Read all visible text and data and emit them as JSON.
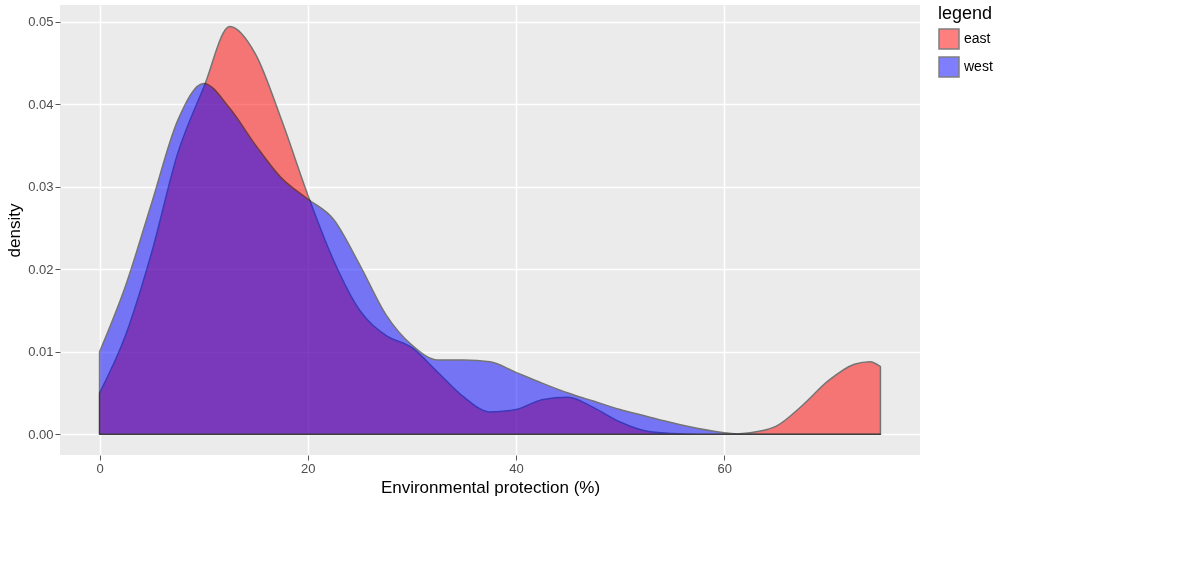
{
  "chart_data": {
    "type": "area",
    "xlabel": "Environmental protection (%)",
    "ylabel": "density",
    "legend_title": "legend",
    "legend": "right",
    "grid": true,
    "xlim": [
      -3.8,
      78.8
    ],
    "xticks": [
      0,
      20,
      40,
      60
    ],
    "ylim": [
      -0.0025,
      0.052
    ],
    "yticks": [
      {
        "value": 0,
        "label": "0.00"
      },
      {
        "value": 0.01,
        "label": "0.01"
      },
      {
        "value": 0.02,
        "label": "0.02"
      },
      {
        "value": 0.03,
        "label": "0.03"
      },
      {
        "value": 0.04,
        "label": "0.04"
      },
      {
        "value": 0.05,
        "label": "0.05"
      }
    ],
    "series": [
      {
        "name": "east",
        "color": "#ff0000",
        "x": [
          0,
          2.5,
          5,
          7.5,
          10,
          12.5,
          15,
          17.5,
          20,
          22.5,
          25,
          27.5,
          30,
          32.5,
          35,
          37.5,
          40,
          42.5,
          45,
          47.5,
          50,
          52.5,
          55,
          57.5,
          60,
          62.5,
          65,
          67.5,
          70,
          72.5,
          74,
          75
        ],
        "values": [
          0.005,
          0.012,
          0.022,
          0.034,
          0.042,
          0.0494,
          0.046,
          0.038,
          0.029,
          0.021,
          0.015,
          0.012,
          0.0105,
          0.0075,
          0.0045,
          0.0027,
          0.003,
          0.0042,
          0.0045,
          0.0032,
          0.0015,
          0.0004,
          0.0001,
          0,
          0,
          0.0002,
          0.001,
          0.0035,
          0.0065,
          0.0085,
          0.0088,
          0.0082
        ]
      },
      {
        "name": "west",
        "color": "#0000ff",
        "x": [
          0,
          2.5,
          5,
          7.5,
          10,
          12.5,
          15,
          17.5,
          20,
          22.5,
          25,
          27.5,
          30,
          32.5,
          35,
          37.5,
          40,
          42.5,
          45,
          47.5,
          50,
          52.5,
          55,
          57.5,
          60,
          62.5,
          65,
          70,
          75
        ],
        "values": [
          0.01,
          0.018,
          0.028,
          0.038,
          0.0425,
          0.0395,
          0.035,
          0.031,
          0.0285,
          0.026,
          0.0205,
          0.0145,
          0.0108,
          0.009,
          0.009,
          0.0088,
          0.0075,
          0.0062,
          0.005,
          0.004,
          0.003,
          0.0022,
          0.0014,
          0.0007,
          0.0002,
          0,
          0,
          0,
          0
        ]
      }
    ]
  }
}
